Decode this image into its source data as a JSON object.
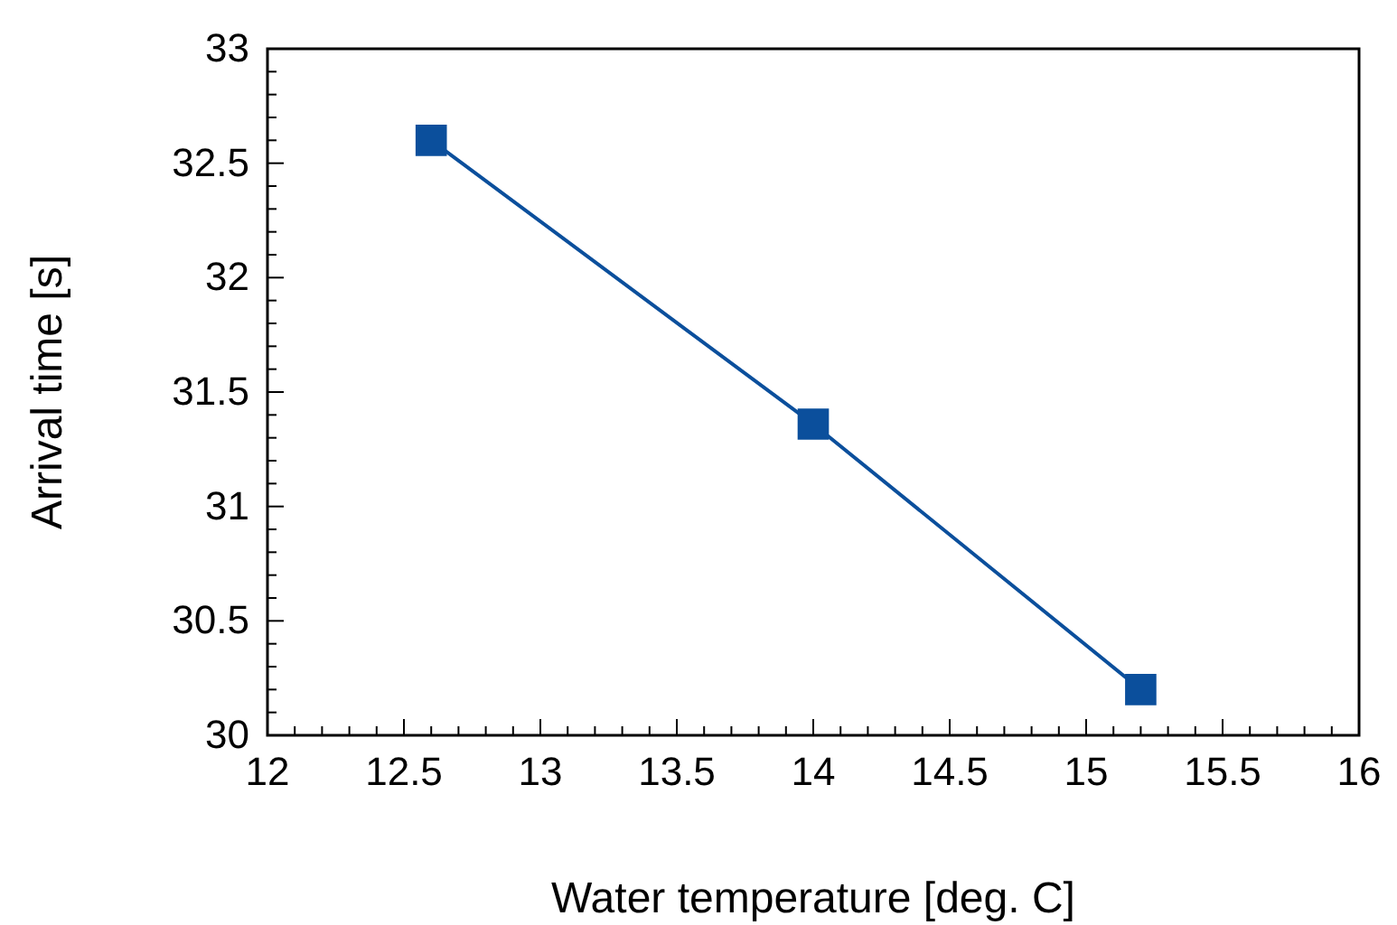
{
  "chart_data": {
    "type": "line",
    "xlabel": "Water temperature [deg. C]",
    "ylabel": "Arrival time [s]",
    "x": [
      12.6,
      14,
      15.2
    ],
    "series": [
      {
        "color": "#0b4f9c",
        "values": [
          32.6,
          31.36,
          30.2
        ]
      }
    ],
    "marker": "square",
    "line_style": "solid",
    "xlim": [
      12,
      16
    ],
    "ylim": [
      30,
      33
    ],
    "xticks": [
      12,
      {
        "value": 12.1,
        "label": null
      },
      {
        "value": 12.2,
        "label": null
      },
      {
        "value": 12.3,
        "label": null
      },
      {
        "value": 12.4,
        "label": null
      },
      12.5,
      {
        "value": 12.6,
        "label": null
      },
      {
        "value": 12.7,
        "label": null
      },
      {
        "value": 12.8,
        "label": null
      },
      {
        "value": 12.9,
        "label": null
      },
      13,
      {
        "value": 13.1,
        "label": null
      },
      {
        "value": 13.2,
        "label": null
      },
      {
        "value": 13.3,
        "label": null
      },
      {
        "value": 13.4,
        "label": null
      },
      13.5,
      {
        "value": 13.6,
        "label": null
      },
      {
        "value": 13.7,
        "label": null
      },
      {
        "value": 13.8,
        "label": null
      },
      {
        "value": 13.9,
        "label": null
      },
      14,
      {
        "value": 14.1,
        "label": null
      },
      {
        "value": 14.2,
        "label": null
      },
      {
        "value": 14.3,
        "label": null
      },
      {
        "value": 14.4,
        "label": null
      },
      14.5,
      {
        "value": 14.6,
        "label": null
      },
      {
        "value": 14.7,
        "label": null
      },
      {
        "value": 14.8,
        "label": null
      },
      {
        "value": 14.9,
        "label": null
      },
      15,
      {
        "value": 15.1,
        "label": null
      },
      {
        "value": 15.2,
        "label": null
      },
      {
        "value": 15.3,
        "label": null
      },
      {
        "value": 15.4,
        "label": null
      },
      15.5,
      {
        "value": 15.6,
        "label": null
      },
      {
        "value": 15.7,
        "label": null
      },
      {
        "value": 15.8,
        "label": null
      },
      {
        "value": 15.9,
        "label": null
      },
      16
    ],
    "yticks": [
      30,
      {
        "value": 30.1,
        "label": null
      },
      {
        "value": 30.2,
        "label": null
      },
      {
        "value": 30.3,
        "label": null
      },
      {
        "value": 30.4,
        "label": null
      },
      30.5,
      {
        "value": 30.6,
        "label": null
      },
      {
        "value": 30.7,
        "label": null
      },
      {
        "value": 30.8,
        "label": null
      },
      {
        "value": 30.9,
        "label": null
      },
      31,
      {
        "value": 31.1,
        "label": null
      },
      {
        "value": 31.2,
        "label": null
      },
      {
        "value": 31.3,
        "label": null
      },
      {
        "value": 31.4,
        "label": null
      },
      31.5,
      {
        "value": 31.6,
        "label": null
      },
      {
        "value": 31.7,
        "label": null
      },
      {
        "value": 31.8,
        "label": null
      },
      {
        "value": 31.9,
        "label": null
      },
      32,
      {
        "value": 32.1,
        "label": null
      },
      {
        "value": 32.2,
        "label": null
      },
      {
        "value": 32.3,
        "label": null
      },
      {
        "value": 32.4,
        "label": null
      },
      32.5,
      {
        "value": 32.6,
        "label": null
      },
      {
        "value": 32.7,
        "label": null
      },
      {
        "value": 32.8,
        "label": null
      },
      {
        "value": 32.9,
        "label": null
      },
      33
    ]
  }
}
